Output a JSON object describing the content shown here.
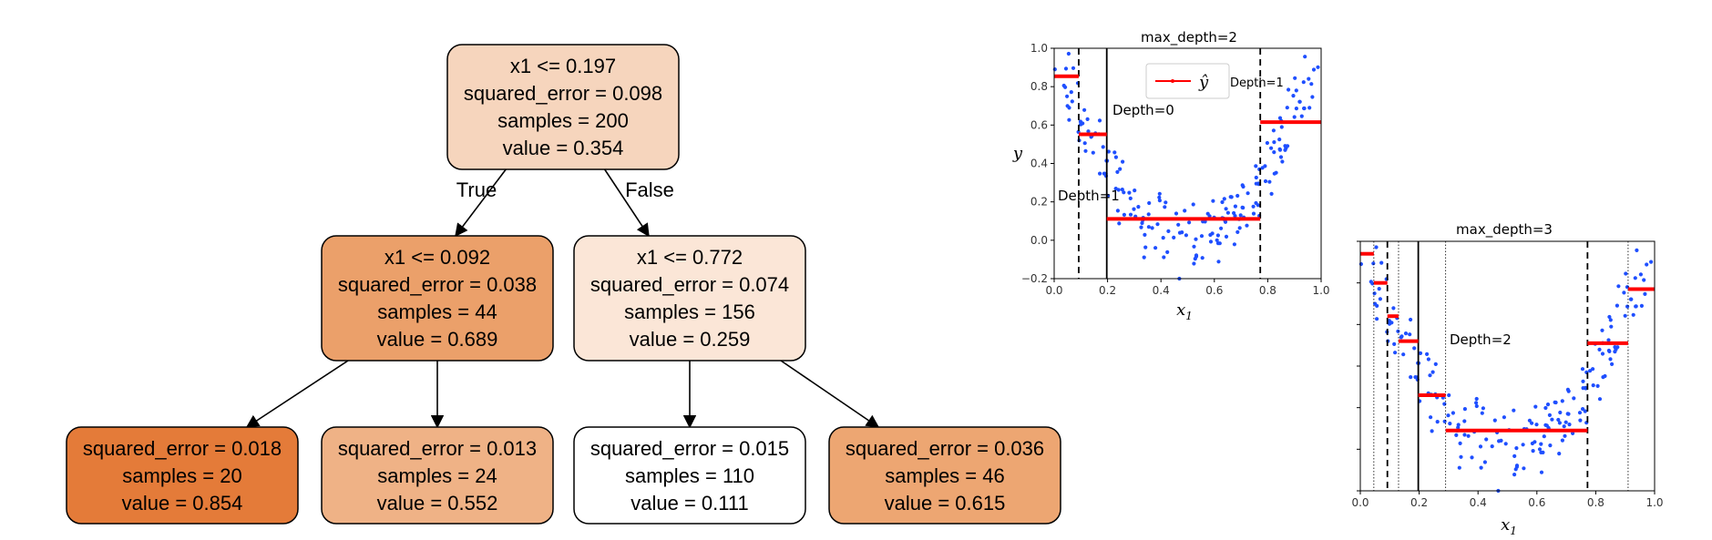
{
  "tree": {
    "nodes": [
      {
        "id": "root",
        "lines": [
          "x1 <= 0.197",
          "squared_error = 0.098",
          "samples = 200",
          "value = 0.354"
        ],
        "fill": "#f6d5bd"
      },
      {
        "id": "left",
        "lines": [
          "x1 <= 0.092",
          "squared_error = 0.038",
          "samples = 44",
          "value = 0.689"
        ],
        "fill": "#eba06a"
      },
      {
        "id": "right",
        "lines": [
          "x1 <= 0.772",
          "squared_error = 0.074",
          "samples = 156",
          "value = 0.259"
        ],
        "fill": "#fbe6d7"
      },
      {
        "id": "leaf-ll",
        "lines": [
          "squared_error = 0.018",
          "samples = 20",
          "value = 0.854"
        ],
        "fill": "#e47b39"
      },
      {
        "id": "leaf-lr",
        "lines": [
          "squared_error = 0.013",
          "samples = 24",
          "value = 0.552"
        ],
        "fill": "#efb286"
      },
      {
        "id": "leaf-rl",
        "lines": [
          "squared_error = 0.015",
          "samples = 110",
          "value = 0.111"
        ],
        "fill": "#ffffff"
      },
      {
        "id": "leaf-rr",
        "lines": [
          "squared_error = 0.036",
          "samples = 46",
          "value = 0.615"
        ],
        "fill": "#eda672"
      }
    ],
    "edge_labels": {
      "true_label": "True",
      "false_label": "False"
    }
  },
  "chart_data": [
    {
      "type": "scatter",
      "title": "max_depth=2",
      "xlabel": "x",
      "xlabel_sub": "1",
      "ylabel": "y",
      "xlim": [
        0.0,
        1.0
      ],
      "ylim": [
        -0.2,
        1.0
      ],
      "x_ticks": [
        "0.0",
        "0.2",
        "0.4",
        "0.6",
        "0.8",
        "1.0"
      ],
      "y_ticks": [
        "−0.2",
        "0.0",
        "0.2",
        "0.4",
        "0.6",
        "0.8",
        "1.0"
      ],
      "legend": {
        "label": "ŷ",
        "placement": "top-center"
      },
      "prediction_steps": [
        {
          "x0": 0.0,
          "x1": 0.092,
          "y": 0.854
        },
        {
          "x0": 0.092,
          "x1": 0.197,
          "y": 0.552
        },
        {
          "x0": 0.197,
          "x1": 0.772,
          "y": 0.111
        },
        {
          "x0": 0.772,
          "x1": 1.0,
          "y": 0.615
        }
      ],
      "split_lines": [
        {
          "x": 0.197,
          "style": "solid",
          "label": "Depth=0"
        },
        {
          "x": 0.092,
          "style": "dashed",
          "label": "Depth=1"
        },
        {
          "x": 0.772,
          "style": "dashed",
          "label": "Depth=1"
        }
      ],
      "point_color": "#1f4fff",
      "step_color": "#ff0000"
    },
    {
      "type": "scatter",
      "title": "max_depth=3",
      "xlabel": "x",
      "xlabel_sub": "1",
      "xlim": [
        0.0,
        1.0
      ],
      "ylim": [
        -0.2,
        1.0
      ],
      "x_ticks": [
        "0.0",
        "0.2",
        "0.4",
        "0.6",
        "0.8",
        "1.0"
      ],
      "prediction_steps": [
        {
          "x0": 0.0,
          "x1": 0.046,
          "y": 0.94
        },
        {
          "x0": 0.046,
          "x1": 0.092,
          "y": 0.8
        },
        {
          "x0": 0.092,
          "x1": 0.13,
          "y": 0.64
        },
        {
          "x0": 0.13,
          "x1": 0.197,
          "y": 0.52
        },
        {
          "x0": 0.197,
          "x1": 0.29,
          "y": 0.26
        },
        {
          "x0": 0.29,
          "x1": 0.772,
          "y": 0.09
        },
        {
          "x0": 0.772,
          "x1": 0.91,
          "y": 0.51
        },
        {
          "x0": 0.91,
          "x1": 1.0,
          "y": 0.77
        }
      ],
      "split_lines": [
        {
          "x": 0.197,
          "style": "solid"
        },
        {
          "x": 0.092,
          "style": "dashed"
        },
        {
          "x": 0.772,
          "style": "dashed"
        },
        {
          "x": 0.046,
          "style": "dotted"
        },
        {
          "x": 0.13,
          "style": "dotted"
        },
        {
          "x": 0.29,
          "style": "dotted"
        },
        {
          "x": 0.91,
          "style": "dotted"
        }
      ],
      "annotations": [
        {
          "text": "Depth=2"
        }
      ],
      "point_color": "#1f4fff",
      "step_color": "#ff0000"
    }
  ]
}
